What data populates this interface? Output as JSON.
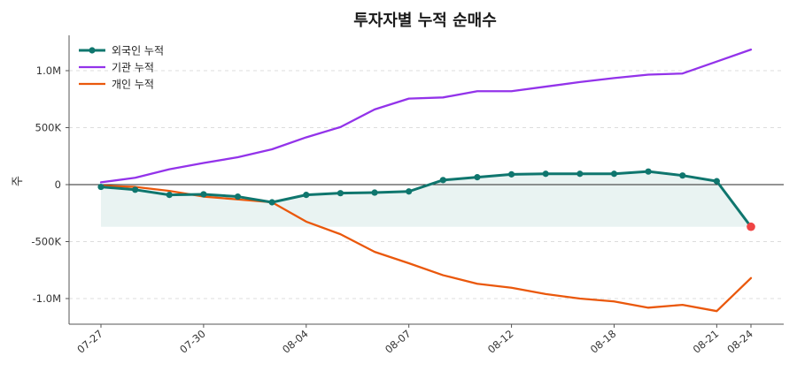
{
  "chart_data": {
    "type": "line",
    "title": "투자자별 누적 순매수",
    "ylabel": "주",
    "xlabel": "",
    "ylim": [
      -1220000,
      1300000
    ],
    "yticks": [
      {
        "value": 1000000,
        "label": "1.0M"
      },
      {
        "value": 500000,
        "label": "500K"
      },
      {
        "value": 0,
        "label": "0"
      },
      {
        "value": -500000,
        "label": "-500K"
      },
      {
        "value": -1000000,
        "label": "-1.0M"
      }
    ],
    "x": [
      "07-27",
      "07-28",
      "07-29",
      "07-30",
      "07-31",
      "08-01",
      "08-04",
      "08-05",
      "08-06",
      "08-07",
      "08-08",
      "08-11",
      "08-12",
      "08-13",
      "08-14",
      "08-18",
      "08-19",
      "08-20",
      "08-21",
      "08-24"
    ],
    "xtick_labels": [
      {
        "index": 0,
        "label": "07-27"
      },
      {
        "index": 3,
        "label": "07-30"
      },
      {
        "index": 6,
        "label": "08-04"
      },
      {
        "index": 9,
        "label": "08-07"
      },
      {
        "index": 12,
        "label": "08-12"
      },
      {
        "index": 15,
        "label": "08-18"
      },
      {
        "index": 18,
        "label": "08-21"
      },
      {
        "index": 19,
        "label": "08-24"
      }
    ],
    "grid": "horizontal-dashed",
    "legend_position": "top-left",
    "series": [
      {
        "name": "외국인 누적",
        "color": "#0f766e",
        "markers": true,
        "fill_to": -370000,
        "last_point_color": "#ef4444",
        "values": [
          -20000,
          -45000,
          -90000,
          -85000,
          -105000,
          -155000,
          -90000,
          -75000,
          -70000,
          -60000,
          40000,
          65000,
          90000,
          95000,
          95000,
          95000,
          115000,
          80000,
          30000,
          -370000
        ]
      },
      {
        "name": "기관 누적",
        "color": "#9333ea",
        "markers": false,
        "values": [
          20000,
          60000,
          135000,
          190000,
          240000,
          310000,
          415000,
          505000,
          660000,
          755000,
          765000,
          820000,
          820000,
          860000,
          900000,
          935000,
          965000,
          975000,
          1080000,
          1185000
        ]
      },
      {
        "name": "개인 누적",
        "color": "#ea580c",
        "markers": false,
        "values": [
          -10000,
          -20000,
          -55000,
          -105000,
          -130000,
          -155000,
          -325000,
          -435000,
          -590000,
          -690000,
          -795000,
          -870000,
          -905000,
          -960000,
          -1000000,
          -1025000,
          -1080000,
          -1055000,
          -1110000,
          -820000
        ]
      }
    ]
  }
}
